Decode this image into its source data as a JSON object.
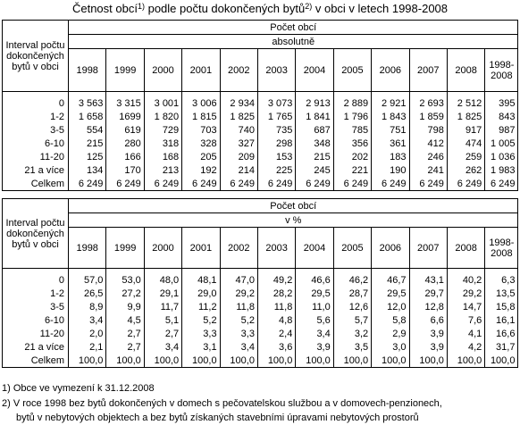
{
  "title": {
    "parts": [
      "Četnost obcí",
      "1)",
      " podle počtu dokončených bytů",
      "2)",
      " v obci v letech 1998-2008"
    ]
  },
  "tables": [
    {
      "row_header": "Interval počtu dokončených bytů v obci",
      "group": "Počet obcí",
      "unit": "absolutně",
      "columns": [
        "1998",
        "1999",
        "2000",
        "2001",
        "2002",
        "2003",
        "2004",
        "2005",
        "2006",
        "2007",
        "2008",
        "1998-2008"
      ],
      "rows": [
        {
          "label": "0",
          "values": [
            "3 563",
            "3 315",
            "3 001",
            "3 006",
            "2 934",
            "3 073",
            "2 913",
            "2 889",
            "2 921",
            "2 693",
            "2 512",
            "395"
          ]
        },
        {
          "label": "1-2",
          "values": [
            "1 658",
            "1699",
            "1 820",
            "1 815",
            "1 825",
            "1 765",
            "1 841",
            "1 796",
            "1 843",
            "1 859",
            "1 825",
            "843"
          ]
        },
        {
          "label": "3-5",
          "values": [
            "554",
            "619",
            "729",
            "703",
            "740",
            "735",
            "687",
            "785",
            "751",
            "798",
            "917",
            "987"
          ]
        },
        {
          "label": "6-10",
          "values": [
            "215",
            "280",
            "318",
            "328",
            "327",
            "298",
            "348",
            "356",
            "361",
            "412",
            "474",
            "1 005"
          ]
        },
        {
          "label": "11-20",
          "values": [
            "125",
            "166",
            "168",
            "205",
            "209",
            "153",
            "215",
            "202",
            "183",
            "246",
            "259",
            "1 036"
          ]
        },
        {
          "label": "21 a více",
          "values": [
            "134",
            "170",
            "213",
            "192",
            "214",
            "225",
            "245",
            "221",
            "190",
            "241",
            "262",
            "1 983"
          ]
        },
        {
          "label": "Celkem",
          "values": [
            "6 249",
            "6 249",
            "6 249",
            "6 249",
            "6 249",
            "6 249",
            "6 249",
            "6 249",
            "6 249",
            "6 249",
            "6 249",
            "6 249"
          ]
        }
      ]
    },
    {
      "row_header": "Interval počtu dokončených bytů v obci",
      "group": "Počet obcí",
      "unit": "v %",
      "columns": [
        "1998",
        "1999",
        "2000",
        "2001",
        "2002",
        "2003",
        "2004",
        "2005",
        "2006",
        "2007",
        "2008",
        "1998-2008"
      ],
      "rows": [
        {
          "label": "0",
          "values": [
            "57,0",
            "53,0",
            "48,0",
            "48,1",
            "47,0",
            "49,2",
            "46,6",
            "46,2",
            "46,7",
            "43,1",
            "40,2",
            "6,3"
          ]
        },
        {
          "label": "1-2",
          "values": [
            "26,5",
            "27,2",
            "29,1",
            "29,0",
            "29,2",
            "28,2",
            "29,5",
            "28,7",
            "29,5",
            "29,7",
            "29,2",
            "13,5"
          ]
        },
        {
          "label": "3-5",
          "values": [
            "8,9",
            "9,9",
            "11,7",
            "11,2",
            "11,8",
            "11,8",
            "11,0",
            "12,6",
            "12,0",
            "12,8",
            "14,7",
            "15,8"
          ]
        },
        {
          "label": "6-10",
          "values": [
            "3,4",
            "4,5",
            "5,1",
            "5,2",
            "5,2",
            "4,8",
            "5,6",
            "5,7",
            "5,8",
            "6,6",
            "7,6",
            "16,1"
          ]
        },
        {
          "label": "11-20",
          "values": [
            "2,0",
            "2,7",
            "2,7",
            "3,3",
            "3,3",
            "2,4",
            "3,4",
            "3,2",
            "2,9",
            "3,9",
            "4,1",
            "16,6"
          ]
        },
        {
          "label": "21 a více",
          "values": [
            "2,1",
            "2,7",
            "3,4",
            "3,1",
            "3,4",
            "3,6",
            "3,9",
            "3,5",
            "3,0",
            "3,9",
            "4,2",
            "31,7"
          ]
        },
        {
          "label": "Celkem",
          "values": [
            "100,0",
            "100,0",
            "100,0",
            "100,0",
            "100,0",
            "100,0",
            "100,0",
            "100,0",
            "100,0",
            "100,0",
            "100,0",
            "100,0"
          ]
        }
      ]
    }
  ],
  "footnotes": [
    "1) Obce ve vymezení k 31.12.2008",
    "2) V roce 1998 bez bytů dokončených v domech s pečovatelskou službou a v domovech-penzionech,",
    "bytů v nebytových objektech a bez bytů získaných stavebními úpravami nebytových prostorů"
  ]
}
